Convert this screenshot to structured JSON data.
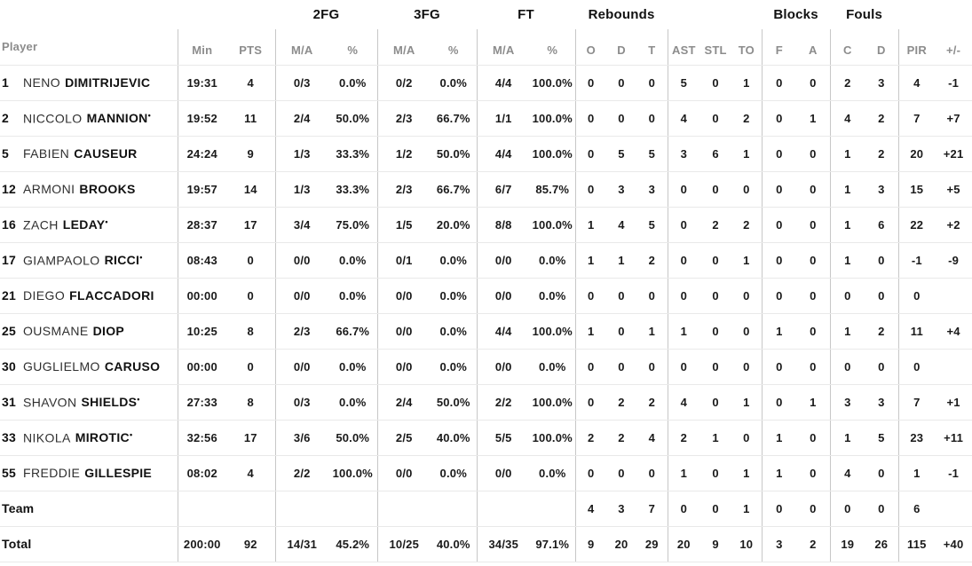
{
  "header": {
    "player": "Player",
    "min": "Min",
    "pts": "PTS",
    "ma": "M/A",
    "pct": "%",
    "o": "O",
    "d": "D",
    "t": "T",
    "ast": "AST",
    "stl": "STL",
    "to": "TO",
    "f": "F",
    "a": "A",
    "c": "C",
    "d2": "D",
    "pir": "PIR",
    "pm": "+/-",
    "groups": {
      "fg2": "2FG",
      "fg3": "3FG",
      "ft": "FT",
      "rebounds": "Rebounds",
      "blocks": "Blocks",
      "fouls": "Fouls"
    }
  },
  "starter_marker": "•",
  "colors": {
    "data_text": "#1a1a1a",
    "header_text": "#8c8c8c",
    "group_text": "#111111",
    "row_separator": "#e9e9e9",
    "column_divider": "#c7c7c7",
    "background": "#ffffff"
  },
  "rows": [
    {
      "type": "player",
      "num": "1",
      "first": "NENO",
      "last": "DIMITRIJEVIC",
      "starter": false,
      "min": "19:31",
      "pts": "4",
      "fg2": "0/3",
      "fg2p": "0.0%",
      "fg3": "0/2",
      "fg3p": "0.0%",
      "ft": "4/4",
      "ftp": "100.0%",
      "o": "0",
      "d": "0",
      "t": "0",
      "ast": "5",
      "stl": "0",
      "to": "1",
      "bf": "0",
      "ba": "0",
      "fc": "2",
      "fd": "3",
      "pir": "4",
      "pm": "-1"
    },
    {
      "type": "player",
      "num": "2",
      "first": "NICCOLO",
      "last": "MANNION",
      "starter": true,
      "min": "19:52",
      "pts": "11",
      "fg2": "2/4",
      "fg2p": "50.0%",
      "fg3": "2/3",
      "fg3p": "66.7%",
      "ft": "1/1",
      "ftp": "100.0%",
      "o": "0",
      "d": "0",
      "t": "0",
      "ast": "4",
      "stl": "0",
      "to": "2",
      "bf": "0",
      "ba": "1",
      "fc": "4",
      "fd": "2",
      "pir": "7",
      "pm": "+7"
    },
    {
      "type": "player",
      "num": "5",
      "first": "FABIEN",
      "last": "CAUSEUR",
      "starter": false,
      "min": "24:24",
      "pts": "9",
      "fg2": "1/3",
      "fg2p": "33.3%",
      "fg3": "1/2",
      "fg3p": "50.0%",
      "ft": "4/4",
      "ftp": "100.0%",
      "o": "0",
      "d": "5",
      "t": "5",
      "ast": "3",
      "stl": "6",
      "to": "1",
      "bf": "0",
      "ba": "0",
      "fc": "1",
      "fd": "2",
      "pir": "20",
      "pm": "+21"
    },
    {
      "type": "player",
      "num": "12",
      "first": "ARMONI",
      "last": "BROOKS",
      "starter": false,
      "min": "19:57",
      "pts": "14",
      "fg2": "1/3",
      "fg2p": "33.3%",
      "fg3": "2/3",
      "fg3p": "66.7%",
      "ft": "6/7",
      "ftp": "85.7%",
      "o": "0",
      "d": "3",
      "t": "3",
      "ast": "0",
      "stl": "0",
      "to": "0",
      "bf": "0",
      "ba": "0",
      "fc": "1",
      "fd": "3",
      "pir": "15",
      "pm": "+5"
    },
    {
      "type": "player",
      "num": "16",
      "first": "ZACH",
      "last": "LEDAY",
      "starter": true,
      "min": "28:37",
      "pts": "17",
      "fg2": "3/4",
      "fg2p": "75.0%",
      "fg3": "1/5",
      "fg3p": "20.0%",
      "ft": "8/8",
      "ftp": "100.0%",
      "o": "1",
      "d": "4",
      "t": "5",
      "ast": "0",
      "stl": "2",
      "to": "2",
      "bf": "0",
      "ba": "0",
      "fc": "1",
      "fd": "6",
      "pir": "22",
      "pm": "+2"
    },
    {
      "type": "player",
      "num": "17",
      "first": "GIAMPAOLO",
      "last": "RICCI",
      "starter": true,
      "min": "08:43",
      "pts": "0",
      "fg2": "0/0",
      "fg2p": "0.0%",
      "fg3": "0/1",
      "fg3p": "0.0%",
      "ft": "0/0",
      "ftp": "0.0%",
      "o": "1",
      "d": "1",
      "t": "2",
      "ast": "0",
      "stl": "0",
      "to": "1",
      "bf": "0",
      "ba": "0",
      "fc": "1",
      "fd": "0",
      "pir": "-1",
      "pm": "-9"
    },
    {
      "type": "player",
      "num": "21",
      "first": "DIEGO",
      "last": "FLACCADORI",
      "starter": false,
      "min": "00:00",
      "pts": "0",
      "fg2": "0/0",
      "fg2p": "0.0%",
      "fg3": "0/0",
      "fg3p": "0.0%",
      "ft": "0/0",
      "ftp": "0.0%",
      "o": "0",
      "d": "0",
      "t": "0",
      "ast": "0",
      "stl": "0",
      "to": "0",
      "bf": "0",
      "ba": "0",
      "fc": "0",
      "fd": "0",
      "pir": "0",
      "pm": ""
    },
    {
      "type": "player",
      "num": "25",
      "first": "OUSMANE",
      "last": "DIOP",
      "starter": false,
      "min": "10:25",
      "pts": "8",
      "fg2": "2/3",
      "fg2p": "66.7%",
      "fg3": "0/0",
      "fg3p": "0.0%",
      "ft": "4/4",
      "ftp": "100.0%",
      "o": "1",
      "d": "0",
      "t": "1",
      "ast": "1",
      "stl": "0",
      "to": "0",
      "bf": "1",
      "ba": "0",
      "fc": "1",
      "fd": "2",
      "pir": "11",
      "pm": "+4"
    },
    {
      "type": "player",
      "num": "30",
      "first": "GUGLIELMO",
      "last": "CARUSO",
      "starter": false,
      "min": "00:00",
      "pts": "0",
      "fg2": "0/0",
      "fg2p": "0.0%",
      "fg3": "0/0",
      "fg3p": "0.0%",
      "ft": "0/0",
      "ftp": "0.0%",
      "o": "0",
      "d": "0",
      "t": "0",
      "ast": "0",
      "stl": "0",
      "to": "0",
      "bf": "0",
      "ba": "0",
      "fc": "0",
      "fd": "0",
      "pir": "0",
      "pm": ""
    },
    {
      "type": "player",
      "num": "31",
      "first": "SHAVON",
      "last": "SHIELDS",
      "starter": true,
      "min": "27:33",
      "pts": "8",
      "fg2": "0/3",
      "fg2p": "0.0%",
      "fg3": "2/4",
      "fg3p": "50.0%",
      "ft": "2/2",
      "ftp": "100.0%",
      "o": "0",
      "d": "2",
      "t": "2",
      "ast": "4",
      "stl": "0",
      "to": "1",
      "bf": "0",
      "ba": "1",
      "fc": "3",
      "fd": "3",
      "pir": "7",
      "pm": "+1"
    },
    {
      "type": "player",
      "num": "33",
      "first": "NIKOLA",
      "last": "MIROTIC",
      "starter": true,
      "min": "32:56",
      "pts": "17",
      "fg2": "3/6",
      "fg2p": "50.0%",
      "fg3": "2/5",
      "fg3p": "40.0%",
      "ft": "5/5",
      "ftp": "100.0%",
      "o": "2",
      "d": "2",
      "t": "4",
      "ast": "2",
      "stl": "1",
      "to": "0",
      "bf": "1",
      "ba": "0",
      "fc": "1",
      "fd": "5",
      "pir": "23",
      "pm": "+11"
    },
    {
      "type": "player",
      "num": "55",
      "first": "FREDDIE",
      "last": "GILLESPIE",
      "starter": false,
      "min": "08:02",
      "pts": "4",
      "fg2": "2/2",
      "fg2p": "100.0%",
      "fg3": "0/0",
      "fg3p": "0.0%",
      "ft": "0/0",
      "ftp": "0.0%",
      "o": "0",
      "d": "0",
      "t": "0",
      "ast": "1",
      "stl": "0",
      "to": "1",
      "bf": "1",
      "ba": "0",
      "fc": "4",
      "fd": "0",
      "pir": "1",
      "pm": "-1"
    },
    {
      "type": "team",
      "label": "Team",
      "min": "",
      "pts": "",
      "fg2": "",
      "fg2p": "",
      "fg3": "",
      "fg3p": "",
      "ft": "",
      "ftp": "",
      "o": "4",
      "d": "3",
      "t": "7",
      "ast": "0",
      "stl": "0",
      "to": "1",
      "bf": "0",
      "ba": "0",
      "fc": "0",
      "fd": "0",
      "pir": "6",
      "pm": ""
    },
    {
      "type": "total",
      "label": "Total",
      "min": "200:00",
      "pts": "92",
      "fg2": "14/31",
      "fg2p": "45.2%",
      "fg3": "10/25",
      "fg3p": "40.0%",
      "ft": "34/35",
      "ftp": "97.1%",
      "o": "9",
      "d": "20",
      "t": "29",
      "ast": "20",
      "stl": "9",
      "to": "10",
      "bf": "3",
      "ba": "2",
      "fc": "19",
      "fd": "26",
      "pir": "115",
      "pm": "+40"
    }
  ]
}
